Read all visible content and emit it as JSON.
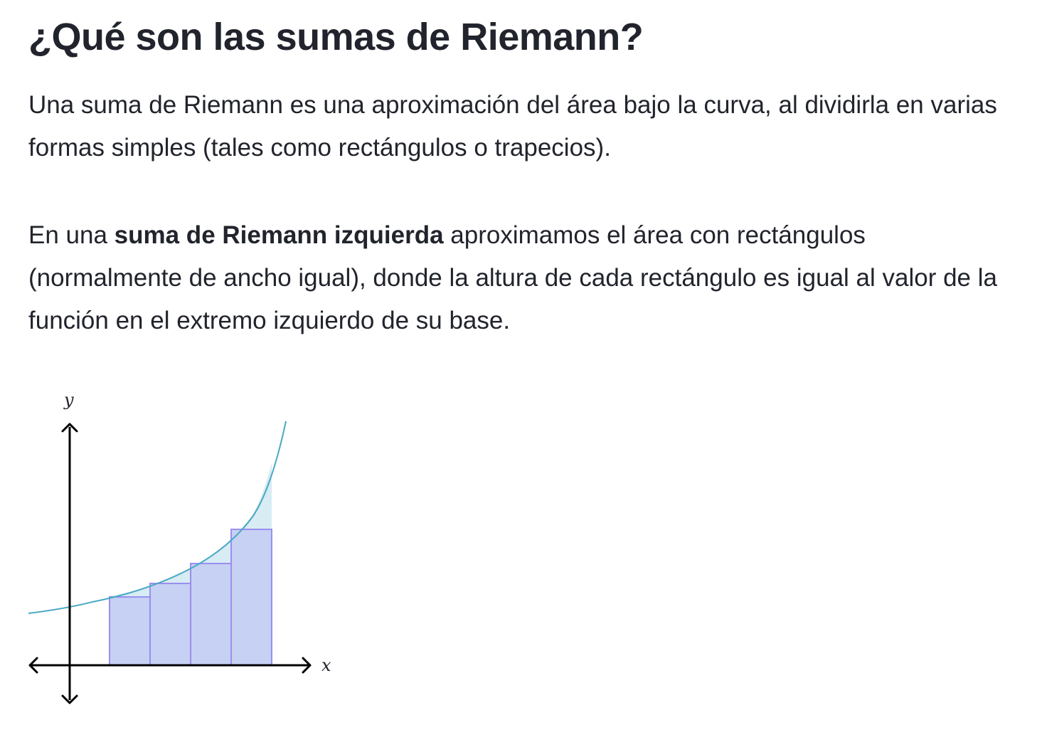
{
  "heading": "¿Qué son las sumas de Riemann?",
  "paragraph1": "Una suma de Riemann es una aproximación del área bajo la curva, al dividirla en varias formas simples (tales como rectángulos o trapecios).",
  "paragraph2": {
    "before": "En una ",
    "bold": "suma de Riemann izquierda",
    "after": " aproximamos el área con rectángulos (normalmente de ancho igual), donde la altura de cada rectángulo es igual al valor de la función en el extremo izquierdo de su base."
  },
  "figure": {
    "x_axis_label": "x",
    "y_axis_label": "y",
    "rectangle_count": 4,
    "colors": {
      "curve": "#4aa8c4",
      "area_fill": "#d8ecf3",
      "rect_fill": "#c6d1f3",
      "rect_stroke": "#9b8ef0",
      "axis": "#000000"
    }
  }
}
